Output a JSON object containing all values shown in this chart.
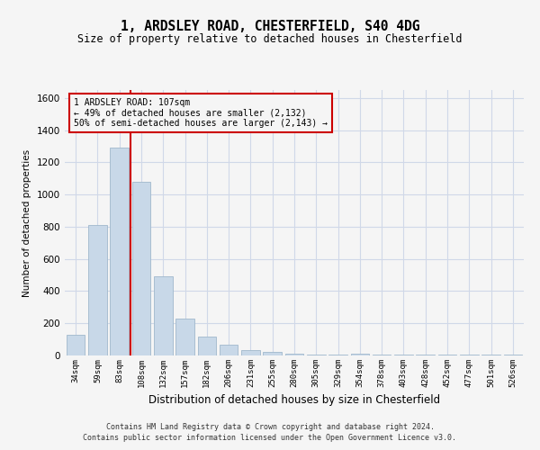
{
  "title_line1": "1, ARDSLEY ROAD, CHESTERFIELD, S40 4DG",
  "title_line2": "Size of property relative to detached houses in Chesterfield",
  "xlabel": "Distribution of detached houses by size in Chesterfield",
  "ylabel": "Number of detached properties",
  "categories": [
    "34sqm",
    "59sqm",
    "83sqm",
    "108sqm",
    "132sqm",
    "157sqm",
    "182sqm",
    "206sqm",
    "231sqm",
    "255sqm",
    "280sqm",
    "305sqm",
    "329sqm",
    "354sqm",
    "378sqm",
    "403sqm",
    "428sqm",
    "452sqm",
    "477sqm",
    "501sqm",
    "526sqm"
  ],
  "values": [
    130,
    810,
    1290,
    1080,
    490,
    230,
    120,
    65,
    35,
    22,
    13,
    7,
    5,
    13,
    5,
    3,
    3,
    3,
    3,
    3,
    3
  ],
  "bar_color": "#c8d8e8",
  "bar_edge_color": "#a0b8cc",
  "grid_color": "#d0d8e8",
  "annotation_line_color": "#cc0000",
  "annotation_box_text": "1 ARDSLEY ROAD: 107sqm\n← 49% of detached houses are smaller (2,132)\n50% of semi-detached houses are larger (2,143) →",
  "annotation_box_color": "#cc0000",
  "ylim": [
    0,
    1650
  ],
  "yticks": [
    0,
    200,
    400,
    600,
    800,
    1000,
    1200,
    1400,
    1600
  ],
  "footer_line1": "Contains HM Land Registry data © Crown copyright and database right 2024.",
  "footer_line2": "Contains public sector information licensed under the Open Government Licence v3.0.",
  "bg_color": "#f5f5f5"
}
